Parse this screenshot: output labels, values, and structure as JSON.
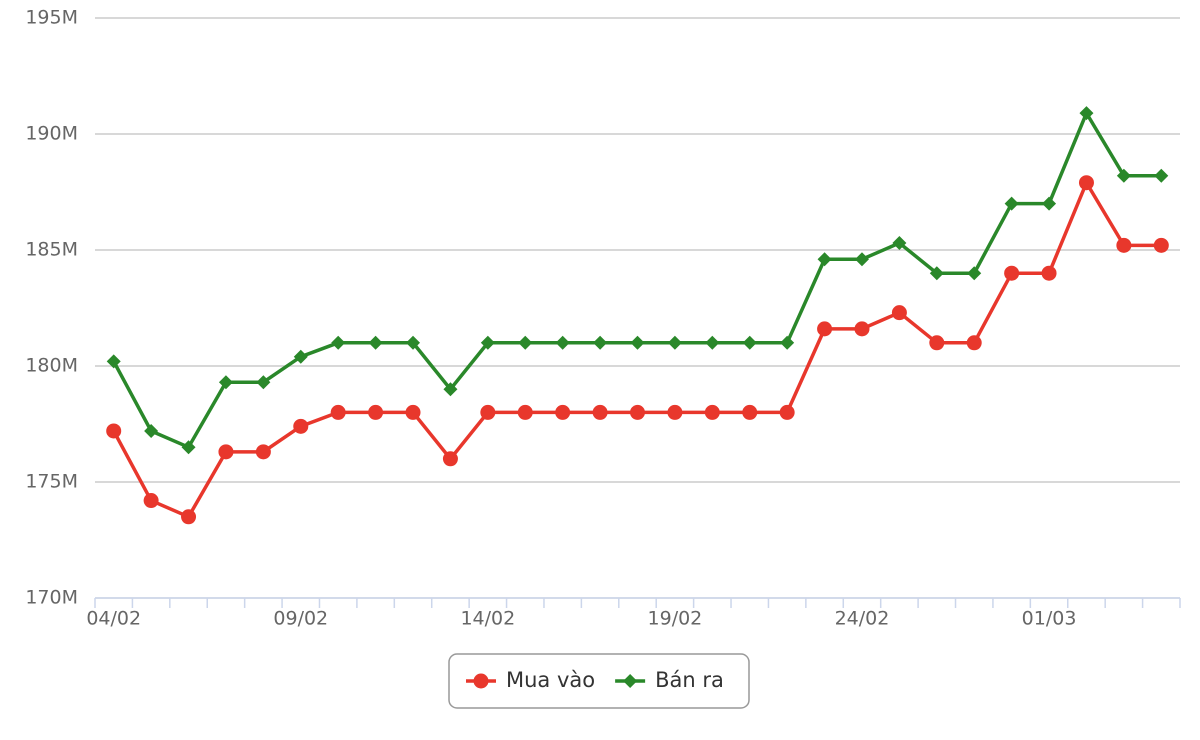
{
  "chart_data": {
    "type": "line",
    "categories": [
      "04/02",
      null,
      null,
      null,
      null,
      "09/02",
      null,
      null,
      null,
      null,
      "14/02",
      null,
      null,
      null,
      null,
      "19/02",
      null,
      null,
      null,
      null,
      "24/02",
      null,
      null,
      null,
      null,
      "01/03",
      null,
      null,
      null
    ],
    "series": [
      {
        "name": "Mua vào",
        "color": "#e8372c",
        "marker": "circle",
        "values": [
          177.2,
          174.2,
          173.5,
          176.3,
          176.3,
          177.4,
          178,
          178,
          178,
          176,
          178,
          178,
          178,
          178,
          178,
          178,
          178,
          178,
          178,
          181.6,
          181.6,
          182.3,
          181,
          181,
          184,
          184,
          187.9,
          185.2,
          185.2
        ]
      },
      {
        "name": "Bán ra",
        "color": "#2a882a",
        "marker": "diamond",
        "values": [
          180.2,
          177.2,
          176.5,
          179.3,
          179.3,
          180.4,
          181,
          181,
          181,
          179,
          181,
          181,
          181,
          181,
          181,
          181,
          181,
          181,
          181,
          184.6,
          184.6,
          185.3,
          184,
          184,
          187,
          187,
          190.9,
          188.2,
          188.2
        ]
      }
    ],
    "ylim": [
      170,
      195
    ],
    "yticks": [
      {
        "value": 170,
        "label": "170M"
      },
      {
        "value": 175,
        "label": "175M"
      },
      {
        "value": 180,
        "label": "180M"
      },
      {
        "value": 185,
        "label": "185M"
      },
      {
        "value": 190,
        "label": "190M"
      },
      {
        "value": 195,
        "label": "195M"
      }
    ],
    "grid": true,
    "legend": "bottom"
  }
}
